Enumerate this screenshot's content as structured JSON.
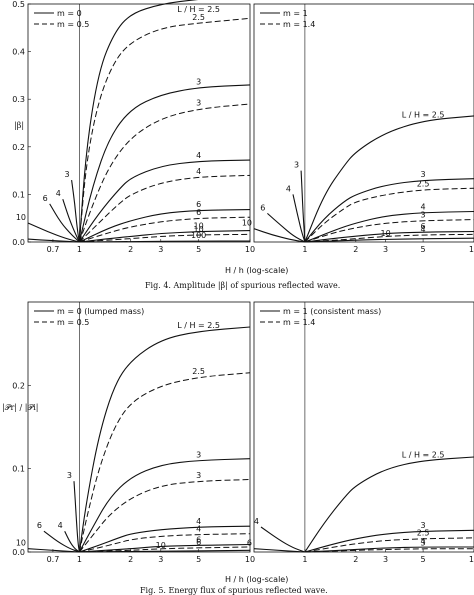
{
  "figures": [
    {
      "caption": "Fig. 4. Amplitude |β| of spurious reflected wave.",
      "xlabel": "H / h (log-scale)",
      "ylabel": "|β|",
      "panels": [
        {
          "legend": [
            {
              "label": "m = 0",
              "style": "solid"
            },
            {
              "label": "m = 0.5",
              "style": "dashed"
            }
          ],
          "ymax": 0.5,
          "yticks": [
            "0.0",
            "0.1",
            "0.2",
            "0.3",
            "0.4",
            "0.5"
          ]
        },
        {
          "legend": [
            {
              "label": "m = 1",
              "style": "solid"
            },
            {
              "label": "m = 1.4",
              "style": "dashed"
            }
          ],
          "ymax": 0.5,
          "yticks": []
        }
      ]
    },
    {
      "caption": "Fig. 5. Energy flux of spurious reflected wave.",
      "xlabel": "H / h (log-scale)",
      "ylabel": "|𝒫r| / |𝒫i|",
      "panels": [
        {
          "legend": [
            {
              "label": "m = 0 (lumped mass)",
              "style": "solid"
            },
            {
              "label": "m = 0.5",
              "style": "dashed"
            }
          ],
          "ymax": 0.3,
          "yticks": [
            "0.0",
            "0.1",
            "0.2"
          ]
        },
        {
          "legend": [
            {
              "label": "m = 1 (consistent mass)",
              "style": "solid"
            },
            {
              "label": "m = 1.4",
              "style": "dashed"
            }
          ],
          "ymax": 0.3,
          "yticks": []
        }
      ]
    }
  ],
  "chart_data": [
    {
      "type": "line",
      "xscale": "log",
      "xlim": [
        0.5,
        10
      ],
      "xticks": [
        "0.7",
        "1",
        "2",
        "3",
        "5",
        "10"
      ],
      "ylim": [
        0,
        0.5
      ],
      "panel": "Fig. 4 left",
      "series": [
        {
          "style": "solid",
          "label": "L / H = 2.5",
          "x": [
            1,
            1.1,
            1.3,
            1.6,
            2,
            3,
            5,
            10
          ],
          "y": [
            0,
            0.2,
            0.36,
            0.44,
            0.48,
            0.5,
            0.51,
            0.52
          ]
        },
        {
          "style": "dashed",
          "label": "2.5",
          "x": [
            1,
            1.1,
            1.3,
            1.6,
            2,
            3,
            5,
            10
          ],
          "y": [
            0,
            0.17,
            0.3,
            0.38,
            0.42,
            0.45,
            0.46,
            0.47
          ]
        },
        {
          "style": "solid",
          "label": "3",
          "x": [
            1,
            1.2,
            1.5,
            2,
            3,
            5,
            10
          ],
          "y": [
            0,
            0.12,
            0.22,
            0.28,
            0.31,
            0.325,
            0.33
          ]
        },
        {
          "style": "dashed",
          "label": "3",
          "x": [
            1,
            1.2,
            1.5,
            2,
            3,
            5,
            10
          ],
          "y": [
            0,
            0.08,
            0.16,
            0.22,
            0.26,
            0.28,
            0.29
          ]
        },
        {
          "style": "solid",
          "label": "4",
          "x": [
            1,
            1.3,
            1.7,
            2,
            3,
            5,
            10
          ],
          "y": [
            0,
            0.06,
            0.11,
            0.135,
            0.16,
            0.17,
            0.172
          ]
        },
        {
          "style": "dashed",
          "label": "4",
          "x": [
            1,
            1.3,
            1.7,
            2,
            3,
            5,
            10
          ],
          "y": [
            0,
            0.04,
            0.08,
            0.1,
            0.125,
            0.137,
            0.14
          ]
        },
        {
          "style": "solid",
          "label": "6",
          "x": [
            1,
            1.5,
            2,
            3,
            5,
            10
          ],
          "y": [
            0,
            0.03,
            0.045,
            0.06,
            0.067,
            0.068
          ]
        },
        {
          "style": "dashed",
          "label": "6",
          "x": [
            1,
            1.5,
            2,
            3,
            5,
            10
          ],
          "y": [
            0,
            0.02,
            0.032,
            0.043,
            0.05,
            0.052
          ]
        },
        {
          "style": "solid",
          "label": "10",
          "x": [
            1,
            2,
            3,
            5,
            10
          ],
          "y": [
            0,
            0.012,
            0.018,
            0.022,
            0.024
          ]
        },
        {
          "style": "dashed",
          "label": "10",
          "x": [
            1,
            2,
            3,
            5,
            10
          ],
          "y": [
            0,
            0.007,
            0.012,
            0.015,
            0.016
          ]
        },
        {
          "style": "solid",
          "label": "100",
          "x": [
            1,
            2,
            5,
            10
          ],
          "y": [
            0,
            0.001,
            0.002,
            0.002
          ]
        },
        {
          "style": "solid",
          "label": "3",
          "x": [
            0.9,
            0.94,
            0.97,
            1
          ],
          "y": [
            0.13,
            0.08,
            0.03,
            0
          ]
        },
        {
          "style": "solid",
          "label": "4",
          "x": [
            0.8,
            0.87,
            0.94,
            1
          ],
          "y": [
            0.09,
            0.05,
            0.02,
            0
          ]
        },
        {
          "style": "solid",
          "label": "6",
          "x": [
            0.67,
            0.78,
            0.9,
            1
          ],
          "y": [
            0.08,
            0.04,
            0.015,
            0
          ]
        },
        {
          "style": "solid",
          "label": "10",
          "x": [
            0.5,
            0.65,
            0.82,
            1
          ],
          "y": [
            0.04,
            0.022,
            0.008,
            0
          ]
        },
        {
          "style": "solid",
          "label": "",
          "x": [
            0.5,
            0.7,
            1
          ],
          "y": [
            0.006,
            0.003,
            0
          ]
        }
      ]
    },
    {
      "type": "line",
      "xscale": "log",
      "xlim": [
        0.5,
        10
      ],
      "xticks": [
        "1",
        "2",
        "3",
        "5",
        "10"
      ],
      "ylim": [
        0,
        0.5
      ],
      "panel": "Fig. 4 right",
      "series": [
        {
          "style": "solid",
          "label": "L / H = 2.5",
          "x": [
            1,
            1.3,
            1.7,
            2,
            3,
            5,
            10
          ],
          "y": [
            0,
            0.1,
            0.16,
            0.19,
            0.23,
            0.255,
            0.265
          ]
        },
        {
          "style": "solid",
          "label": "3",
          "x": [
            1,
            1.3,
            1.7,
            2,
            3,
            5,
            10
          ],
          "y": [
            0,
            0.05,
            0.085,
            0.1,
            0.12,
            0.13,
            0.133
          ]
        },
        {
          "style": "dashed",
          "label": "2.5",
          "x": [
            1,
            1.3,
            1.7,
            2,
            3,
            5,
            10
          ],
          "y": [
            0,
            0.04,
            0.07,
            0.085,
            0.1,
            0.11,
            0.113
          ]
        },
        {
          "style": "solid",
          "label": "4",
          "x": [
            1,
            1.5,
            2,
            3,
            5,
            10
          ],
          "y": [
            0,
            0.025,
            0.04,
            0.055,
            0.062,
            0.064
          ]
        },
        {
          "style": "dashed",
          "label": "3",
          "x": [
            1,
            1.5,
            2,
            3,
            5,
            10
          ],
          "y": [
            0,
            0.02,
            0.03,
            0.04,
            0.045,
            0.047
          ]
        },
        {
          "style": "solid",
          "label": "6",
          "x": [
            1,
            1.7,
            3,
            5,
            10
          ],
          "y": [
            0,
            0.01,
            0.018,
            0.021,
            0.022
          ]
        },
        {
          "style": "dashed",
          "label": "4",
          "x": [
            1,
            1.7,
            3,
            5,
            10
          ],
          "y": [
            0,
            0.005,
            0.012,
            0.015,
            0.016
          ]
        },
        {
          "style": "solid",
          "label": "10",
          "x": [
            1,
            3,
            10
          ],
          "y": [
            0,
            0.006,
            0.008
          ]
        },
        {
          "style": "solid",
          "label": "3",
          "x": [
            0.95,
            0.975,
            1
          ],
          "y": [
            0.15,
            0.06,
            0
          ]
        },
        {
          "style": "solid",
          "label": "4",
          "x": [
            0.85,
            0.9,
            0.95,
            1
          ],
          "y": [
            0.1,
            0.06,
            0.025,
            0
          ]
        },
        {
          "style": "solid",
          "label": "6",
          "x": [
            0.6,
            0.72,
            0.86,
            1
          ],
          "y": [
            0.06,
            0.035,
            0.012,
            0
          ]
        },
        {
          "style": "solid",
          "label": "10",
          "x": [
            0.5,
            0.64,
            0.82,
            1
          ],
          "y": [
            0.028,
            0.015,
            0.005,
            0
          ]
        }
      ]
    },
    {
      "type": "line",
      "xscale": "log",
      "xlim": [
        0.5,
        10
      ],
      "xticks": [
        "0.7",
        "1",
        "2",
        "3",
        "5",
        "10"
      ],
      "ylim": [
        0,
        0.3
      ],
      "panel": "Fig. 5 left",
      "series": [
        {
          "style": "solid",
          "label": "L / H = 2.5",
          "x": [
            1,
            1.1,
            1.3,
            1.6,
            2,
            3,
            5,
            10
          ],
          "y": [
            0,
            0.06,
            0.14,
            0.2,
            0.23,
            0.255,
            0.265,
            0.27
          ]
        },
        {
          "style": "dashed",
          "label": "2.5",
          "x": [
            1,
            1.1,
            1.3,
            1.6,
            2,
            3,
            5,
            10
          ],
          "y": [
            0,
            0.04,
            0.1,
            0.15,
            0.18,
            0.2,
            0.21,
            0.215
          ]
        },
        {
          "style": "solid",
          "label": "3",
          "x": [
            1,
            1.2,
            1.5,
            2,
            3,
            5,
            10
          ],
          "y": [
            0,
            0.03,
            0.065,
            0.09,
            0.105,
            0.11,
            0.112
          ]
        },
        {
          "style": "dashed",
          "label": "3",
          "x": [
            1,
            1.2,
            1.5,
            2,
            3,
            5,
            10
          ],
          "y": [
            0,
            0.02,
            0.045,
            0.065,
            0.08,
            0.085,
            0.087
          ]
        },
        {
          "style": "solid",
          "label": "4",
          "x": [
            1,
            1.3,
            1.7,
            2,
            3,
            5,
            10
          ],
          "y": [
            0,
            0.008,
            0.017,
            0.022,
            0.027,
            0.03,
            0.031
          ]
        },
        {
          "style": "dashed",
          "label": "4",
          "x": [
            1,
            1.3,
            1.7,
            2,
            3,
            5,
            10
          ],
          "y": [
            0,
            0.005,
            0.011,
            0.015,
            0.019,
            0.021,
            0.022
          ]
        },
        {
          "style": "solid",
          "label": "6",
          "x": [
            1,
            2,
            3,
            5,
            10
          ],
          "y": [
            0,
            0.004,
            0.007,
            0.008,
            0.009
          ]
        },
        {
          "style": "dashed",
          "label": "6",
          "x": [
            1,
            2,
            3,
            5,
            10
          ],
          "y": [
            0,
            0.002,
            0.004,
            0.005,
            0.006
          ]
        },
        {
          "style": "solid",
          "label": "10",
          "x": [
            1,
            3,
            10
          ],
          "y": [
            0,
            0.001,
            0.002
          ]
        },
        {
          "style": "solid",
          "label": "3",
          "x": [
            0.93,
            0.96,
            0.98,
            1
          ],
          "y": [
            0.085,
            0.04,
            0.012,
            0
          ]
        },
        {
          "style": "solid",
          "label": "4",
          "x": [
            0.82,
            0.88,
            0.94,
            1
          ],
          "y": [
            0.025,
            0.012,
            0.004,
            0
          ]
        },
        {
          "style": "solid",
          "label": "6",
          "x": [
            0.62,
            0.75,
            0.88,
            1
          ],
          "y": [
            0.025,
            0.012,
            0.004,
            0
          ]
        },
        {
          "style": "solid",
          "label": "10",
          "x": [
            0.5,
            0.7,
            1
          ],
          "y": [
            0.004,
            0.002,
            0
          ]
        }
      ]
    },
    {
      "type": "line",
      "xscale": "log",
      "xlim": [
        0.5,
        10
      ],
      "xticks": [
        "1",
        "2",
        "3",
        "5",
        "10"
      ],
      "ylim": [
        0,
        0.3
      ],
      "panel": "Fig. 5 right",
      "series": [
        {
          "style": "solid",
          "label": "L / H = 2.5",
          "x": [
            1,
            1.3,
            1.7,
            2,
            3,
            5,
            10
          ],
          "y": [
            0,
            0.035,
            0.065,
            0.08,
            0.1,
            0.11,
            0.114
          ]
        },
        {
          "style": "solid",
          "label": "3",
          "x": [
            1,
            1.5,
            2,
            3,
            5,
            10
          ],
          "y": [
            0,
            0.01,
            0.016,
            0.022,
            0.025,
            0.026
          ]
        },
        {
          "style": "dashed",
          "label": "2.5",
          "x": [
            1,
            1.5,
            2,
            3,
            5,
            10
          ],
          "y": [
            0,
            0.006,
            0.01,
            0.014,
            0.016,
            0.017
          ]
        },
        {
          "style": "solid",
          "label": "4",
          "x": [
            1,
            2,
            3,
            5,
            10
          ],
          "y": [
            0,
            0.003,
            0.005,
            0.006,
            0.006
          ]
        },
        {
          "style": "dashed",
          "label": "3",
          "x": [
            1,
            2,
            3,
            5,
            10
          ],
          "y": [
            0,
            0.002,
            0.003,
            0.004,
            0.004
          ]
        },
        {
          "style": "solid",
          "label": "4",
          "x": [
            0.55,
            0.7,
            0.85,
            1
          ],
          "y": [
            0.03,
            0.015,
            0.005,
            0
          ]
        },
        {
          "style": "solid",
          "label": "6",
          "x": [
            0.5,
            0.7,
            1
          ],
          "y": [
            0.004,
            0.002,
            0
          ]
        }
      ]
    }
  ]
}
